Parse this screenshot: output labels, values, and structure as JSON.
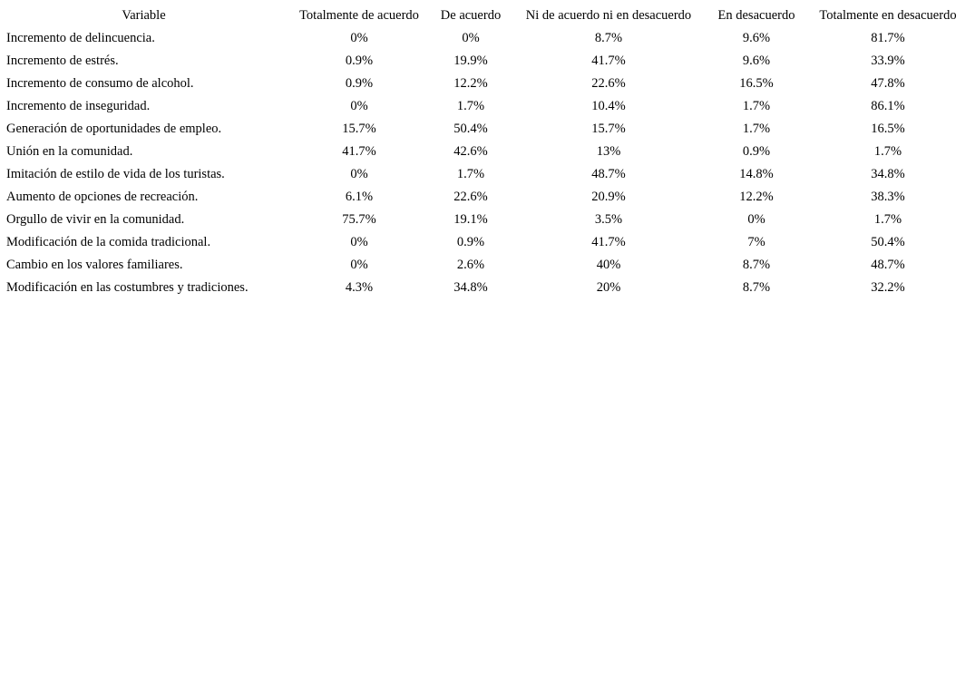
{
  "table": {
    "header": [
      "Variable",
      "Totalmente de acuerdo",
      "De acuerdo",
      "Ni de acuerdo ni en desacuerdo",
      "En desacuerdo",
      "Totalmente en desacuerdo"
    ],
    "rows": [
      [
        "Incremento de delincuencia.",
        "0%",
        "0%",
        "8.7%",
        "9.6%",
        "81.7%"
      ],
      [
        "Incremento de estrés.",
        "0.9%",
        "19.9%",
        "41.7%",
        "9.6%",
        "33.9%"
      ],
      [
        "Incremento de consumo de alcohol.",
        "0.9%",
        "12.2%",
        "22.6%",
        "16.5%",
        "47.8%"
      ],
      [
        "Incremento de inseguridad.",
        "0%",
        "1.7%",
        "10.4%",
        "1.7%",
        "86.1%"
      ],
      [
        "Generación de oportunidades de empleo.",
        "15.7%",
        "50.4%",
        "15.7%",
        "1.7%",
        "16.5%"
      ],
      [
        "Unión en la comunidad.",
        "41.7%",
        "42.6%",
        "13%",
        "0.9%",
        "1.7%"
      ],
      [
        "Imitación de estilo de vida de los turistas.",
        "0%",
        "1.7%",
        "48.7%",
        "14.8%",
        "34.8%"
      ],
      [
        "Aumento de opciones de recreación.",
        "6.1%",
        "22.6%",
        "20.9%",
        "12.2%",
        "38.3%"
      ],
      [
        "Orgullo de vivir en la comunidad.",
        "75.7%",
        "19.1%",
        "3.5%",
        "0%",
        "1.7%"
      ],
      [
        "Modificación de la comida tradicional.",
        "0%",
        "0.9%",
        "41.7%",
        "7%",
        "50.4%"
      ],
      [
        "Cambio en los valores familiares.",
        "0%",
        "2.6%",
        "40%",
        "8.7%",
        "48.7%"
      ],
      [
        "Modificación en las costumbres y tradiciones.",
        "4.3%",
        "34.8%",
        "20%",
        "8.7%",
        "32.2%"
      ]
    ]
  }
}
